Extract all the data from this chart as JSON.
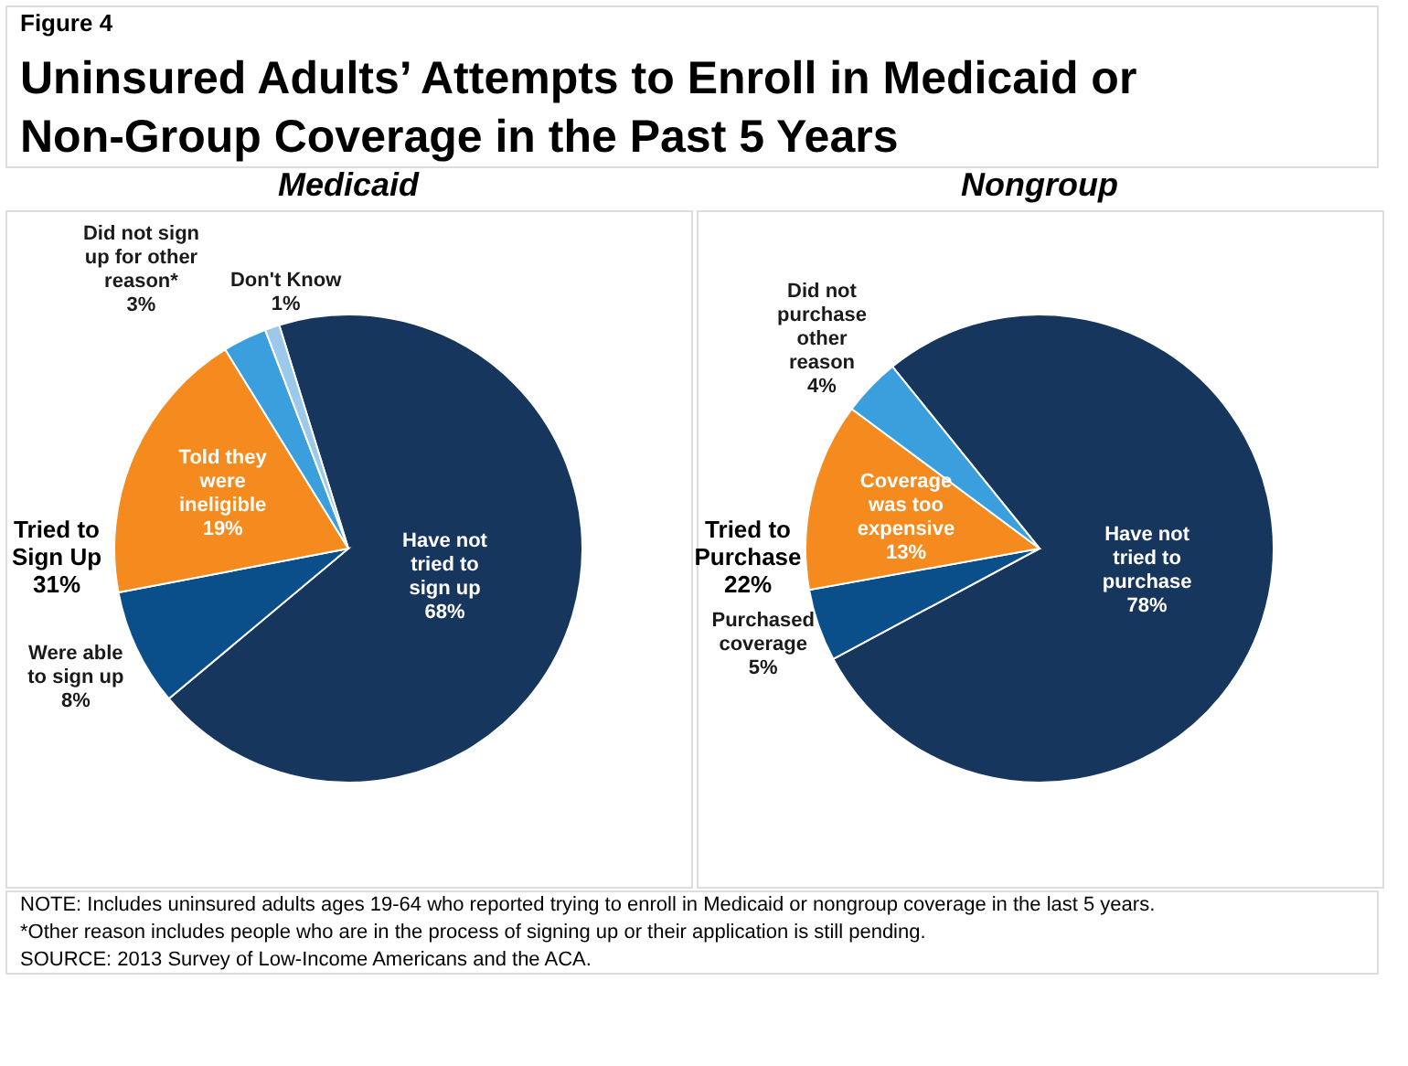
{
  "chart_data": [
    {
      "type": "pie",
      "title": "Medicaid",
      "categories": [
        "Have not tried to sign up",
        "Were able to sign up",
        "Told they were ineligible",
        "Did not sign up for other reason*",
        "Don't Know"
      ],
      "values": [
        68,
        8,
        19,
        3,
        1
      ],
      "value_labels": [
        "68%",
        "8%",
        "19%",
        "3%",
        "1%"
      ],
      "colors": [
        "#17365d",
        "#0b4f8a",
        "#f58a1f",
        "#3a9fdc",
        "#9cc8ea"
      ],
      "annotations": [
        "Figure 4",
        "Uninsured Adults’ Attempts to Enroll in Medicaid or Non-Group Coverage in the Past 5 Years",
        "Tried to Sign Up 31%",
        "NOTE: Includes uninsured adults ages 19-64 who reported trying to enroll in Medicaid or nongroup coverage in the last 5 years.",
        "*Other reason includes people who are in the process of signing up or their application is still pending.",
        "SOURCE: 2013 Survey of Low-Income Americans and the ACA."
      ]
    },
    {
      "type": "pie",
      "title": "Nongroup",
      "categories": [
        "Have not tried to purchase",
        "Purchased coverage",
        "Coverage was too expensive",
        "Did not purchase other reason"
      ],
      "values": [
        78,
        5,
        13,
        4
      ],
      "value_labels": [
        "78%",
        "5%",
        "13%",
        "4%"
      ],
      "colors": [
        "#17365d",
        "#0b4f8a",
        "#f58a1f",
        "#3a9fdc"
      ],
      "annotations": [
        "Tried to Purchase 22%"
      ]
    }
  ]
}
